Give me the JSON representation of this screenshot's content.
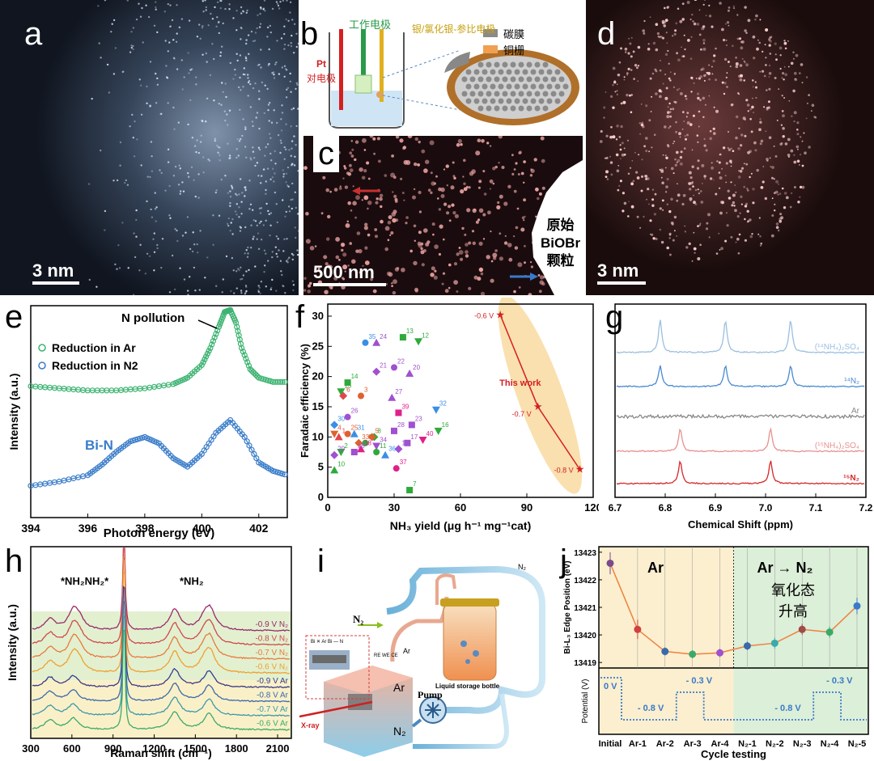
{
  "labels": {
    "a": "a",
    "b": "b",
    "c": "c",
    "d": "d",
    "e": "e",
    "f": "f",
    "g": "g",
    "h": "h",
    "i": "i",
    "j": "j"
  },
  "panel_a": {
    "scalebar": "3 nm"
  },
  "panel_b": {
    "working_electrode": "工作电极",
    "reference_electrode": "银/氯化银-参比电极",
    "counter_electrode_1": "Pt",
    "counter_electrode_2": "对电极",
    "legend_carbon": "碳膜",
    "legend_copper": "铜栅",
    "carbon_color": "#8a8a8a",
    "copper_color": "#f0a050"
  },
  "panel_c": {
    "scalebar": "500 nm",
    "particle_1": "原始",
    "particle_2": "BiOBr",
    "particle_3": "颗粒"
  },
  "panel_d": {
    "scalebar": "3 nm"
  },
  "chart_data": [
    {
      "panel": "e",
      "type": "line",
      "xlabel": "Photon energy (eV)",
      "ylabel": "Intensity (a.u.)",
      "xlim": [
        394,
        403
      ],
      "xticks": [
        394,
        396,
        398,
        400,
        402
      ],
      "series": [
        {
          "name": "Reduction in Ar",
          "color": "#3cb371",
          "x": [
            394,
            395,
            396,
            397,
            398,
            399,
            399.5,
            400,
            400.3,
            400.6,
            400.8,
            401,
            401.2,
            401.4,
            401.7,
            402,
            402.5,
            403
          ],
          "y": [
            0.62,
            0.61,
            0.6,
            0.6,
            0.61,
            0.63,
            0.66,
            0.72,
            0.8,
            0.9,
            0.97,
            0.98,
            0.92,
            0.8,
            0.7,
            0.66,
            0.64,
            0.64
          ]
        },
        {
          "name": "Reduction in N2",
          "color": "#3a7dc9",
          "x": [
            394,
            395,
            396,
            396.5,
            397,
            397.5,
            398,
            398.5,
            399,
            399.5,
            400,
            400.5,
            401,
            401.5,
            402,
            402.5,
            403
          ],
          "y": [
            0.15,
            0.17,
            0.2,
            0.25,
            0.31,
            0.36,
            0.38,
            0.35,
            0.28,
            0.24,
            0.3,
            0.4,
            0.46,
            0.38,
            0.26,
            0.22,
            0.2
          ]
        }
      ],
      "annotations": [
        "N pollution",
        "Bi-N"
      ]
    },
    {
      "panel": "f",
      "type": "scatter",
      "xlabel": "NH₃ yield (μg h⁻¹ mg⁻¹cat)",
      "ylabel": "Faradaic efficiency (%)",
      "xlim": [
        0,
        120
      ],
      "ylim": [
        0,
        32
      ],
      "xticks": [
        0,
        30,
        60,
        90,
        120
      ],
      "yticks": [
        0,
        5,
        10,
        15,
        20,
        25,
        30
      ],
      "this_work": {
        "label": "This work",
        "x": [
          78,
          95,
          114
        ],
        "y": [
          30.2,
          15,
          4.6
        ],
        "potentials": [
          "-0.6 V",
          "-0.7 V",
          "-0.8 V"
        ]
      },
      "points": [
        {
          "id": "35",
          "x": 17,
          "y": 25.6,
          "c": "#3a8ee6"
        },
        {
          "id": "24",
          "x": 22,
          "y": 25.6,
          "c": "#a050d0"
        },
        {
          "id": "13",
          "x": 34,
          "y": 26.5,
          "c": "#2eaa3a"
        },
        {
          "id": "12",
          "x": 41,
          "y": 25.8,
          "c": "#2eaa3a"
        },
        {
          "id": "21",
          "x": 22,
          "y": 20.8,
          "c": "#a050d0"
        },
        {
          "id": "22",
          "x": 30,
          "y": 21.5,
          "c": "#a050d0"
        },
        {
          "id": "20",
          "x": 37,
          "y": 20.5,
          "c": "#a050d0"
        },
        {
          "id": "14",
          "x": 9,
          "y": 19,
          "c": "#2eaa3a"
        },
        {
          "id": "15",
          "x": 6,
          "y": 17.5,
          "c": "#2eaa3a"
        },
        {
          "id": "6",
          "x": 7,
          "y": 16.8,
          "c": "#e04848"
        },
        {
          "id": "3",
          "x": 15,
          "y": 16.8,
          "c": "#e06030"
        },
        {
          "id": "27",
          "x": 29,
          "y": 16.5,
          "c": "#a050d0"
        },
        {
          "id": "39",
          "x": 32,
          "y": 14,
          "c": "#e0208a"
        },
        {
          "id": "32",
          "x": 49,
          "y": 14.5,
          "c": "#3a8ee6"
        },
        {
          "id": "30",
          "x": 3,
          "y": 12,
          "c": "#3a8ee6"
        },
        {
          "id": "26",
          "x": 9,
          "y": 13.3,
          "c": "#a050d0"
        },
        {
          "id": "31",
          "x": 12,
          "y": 10.5,
          "c": "#3a8ee6"
        },
        {
          "id": "23",
          "x": 38,
          "y": 12,
          "c": "#a050d0"
        },
        {
          "id": "16",
          "x": 50,
          "y": 11,
          "c": "#2eaa3a"
        },
        {
          "id": "8",
          "x": 21,
          "y": 10,
          "c": "#2eaa3a"
        },
        {
          "id": "25",
          "x": 9,
          "y": 10.5,
          "c": "#e06030"
        },
        {
          "id": "1",
          "x": 5,
          "y": 10,
          "c": "#e04848"
        },
        {
          "id": "28",
          "x": 30,
          "y": 11,
          "c": "#a050d0"
        },
        {
          "id": "34",
          "x": 22,
          "y": 8.5,
          "c": "#a050d0"
        },
        {
          "id": "33",
          "x": 14,
          "y": 9,
          "c": "#e06030"
        },
        {
          "id": "9",
          "x": 17,
          "y": 9,
          "c": "#2eaa3a"
        },
        {
          "id": "38",
          "x": 15,
          "y": 8,
          "c": "#e0208a"
        },
        {
          "id": "17",
          "x": 36,
          "y": 9,
          "c": "#a050d0"
        },
        {
          "id": "40",
          "x": 43,
          "y": 9.5,
          "c": "#e0208a"
        },
        {
          "id": "19",
          "x": 32,
          "y": 8,
          "c": "#a050d0"
        },
        {
          "id": "11",
          "x": 22,
          "y": 7.5,
          "c": "#2eaa3a"
        },
        {
          "id": "36",
          "x": 26,
          "y": 7,
          "c": "#3a8ee6"
        },
        {
          "id": "18",
          "x": 12,
          "y": 7.5,
          "c": "#a050d0"
        },
        {
          "id": "2",
          "x": 6,
          "y": 7.5,
          "c": "#2eaa3a"
        },
        {
          "id": "29",
          "x": 3,
          "y": 7,
          "c": "#a050d0"
        },
        {
          "id": "37",
          "x": 31,
          "y": 4.8,
          "c": "#e0208a"
        },
        {
          "id": "10",
          "x": 3,
          "y": 4.5,
          "c": "#2eaa3a"
        },
        {
          "id": "7",
          "x": 37,
          "y": 1.2,
          "c": "#2eaa3a"
        },
        {
          "id": "4",
          "x": 3,
          "y": 10.5,
          "c": "#e06030"
        },
        {
          "id": "5",
          "x": 20,
          "y": 10,
          "c": "#e06030"
        }
      ]
    },
    {
      "panel": "g",
      "type": "line",
      "xlabel": "Chemical Shift (ppm)",
      "xlim": [
        6.7,
        7.2
      ],
      "xticks": [
        6.7,
        6.8,
        6.9,
        7.0,
        7.1,
        7.2
      ],
      "series": [
        {
          "name": "(¹⁴NH₄)₂SO₄",
          "color": "#9bbfe0",
          "peaks": [
            6.79,
            6.92,
            7.05
          ]
        },
        {
          "name": "¹⁴N₂",
          "color": "#4a8ad0",
          "peaks": [
            6.79,
            6.92,
            7.05
          ]
        },
        {
          "name": "Ar",
          "color": "#888888",
          "peaks": []
        },
        {
          "name": "(¹⁵NH₄)₂SO₄",
          "color": "#e89090",
          "peaks": [
            6.83,
            7.01
          ]
        },
        {
          "name": "¹⁵N₂",
          "color": "#d42828",
          "peaks": [
            6.83,
            7.01
          ]
        }
      ]
    },
    {
      "panel": "h",
      "type": "line",
      "xlabel": "Raman shift (cm⁻¹)",
      "ylabel": "Intensity (a.u.)",
      "xlim": [
        300,
        2200
      ],
      "xticks": [
        300,
        600,
        900,
        1200,
        1500,
        1800,
        2100
      ],
      "annotations": [
        "*NH₂NH₂*",
        "*NH₂"
      ],
      "series": [
        {
          "name": "-0.9 V N₂",
          "color": "#9a2a6a"
        },
        {
          "name": "-0.8 V N₂",
          "color": "#d04a4a"
        },
        {
          "name": "-0.7 V N₂",
          "color": "#e87a3a"
        },
        {
          "name": "-0.6 V N₂",
          "color": "#f0a030"
        },
        {
          "name": "-0.9 V Ar",
          "color": "#3a3a8a"
        },
        {
          "name": "-0.8 V Ar",
          "color": "#3a6aaa"
        },
        {
          "name": "-0.7 V Ar",
          "color": "#3a9aaa"
        },
        {
          "name": "-0.6 V Ar",
          "color": "#3aaa6a"
        }
      ]
    },
    {
      "panel": "j",
      "type": "line",
      "xlabel": "Cycle testing",
      "ylabel": "Bi-L₃ Edge Position (eV)",
      "ylabel2": "Potential (V)",
      "categories": [
        "Initial",
        "Ar-1",
        "Ar-2",
        "Ar-3",
        "Ar-4",
        "N₂-1",
        "N₂-2",
        "N₂-3",
        "N₂-4",
        "N₂-5"
      ],
      "values": [
        13422.6,
        13420.2,
        13419.4,
        13419.3,
        13419.35,
        13419.6,
        13419.7,
        13420.2,
        13420.1,
        13421.05
      ],
      "errors": [
        0.4,
        0.35,
        0.15,
        0.15,
        0.15,
        0.15,
        0.2,
        0.2,
        0.2,
        0.3
      ],
      "point_colors": [
        "#7a4a8a",
        "#d04040",
        "#3a6aaa",
        "#3aaa6a",
        "#a050d0",
        "#3a6aaa",
        "#3aaaaa",
        "#a04a4a",
        "#3aaa6a",
        "#3a7ac9"
      ],
      "ylim": [
        13418.8,
        13423.2
      ],
      "yticks": [
        13419,
        13420,
        13421,
        13422,
        13423
      ],
      "region_ar": "Ar",
      "region_n2": "Ar → N₂",
      "note_1": "氧化态",
      "note_2": "升高",
      "potential_labels": [
        "0 V",
        "- 0.8 V",
        "- 0.3 V",
        "- 0.8 V",
        "- 0.3 V"
      ]
    }
  ],
  "panel_i": {
    "n2": "N₂",
    "n2_small": "N₂",
    "ar": "Ar",
    "ar2": "Ar",
    "ar_box": "Ar",
    "n2_box": "N₂",
    "bottle": "Liquid storage bottle",
    "pump": "Pump",
    "xray": "X-ray",
    "cell_legend": "Bi ✕ Ar  Bi — N",
    "electrodes": "RE  WE  CE"
  }
}
